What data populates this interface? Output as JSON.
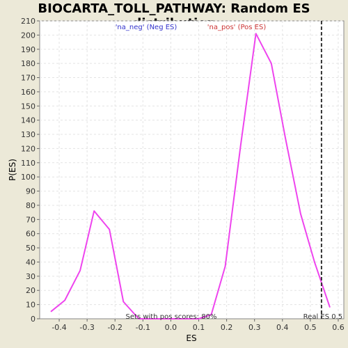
{
  "chart_data": {
    "type": "line",
    "title": "BIOCARTA_TOLL_PATHWAY: Random ES distribution",
    "xlabel": "ES",
    "ylabel": "P(ES)",
    "xlim": [
      -0.47,
      0.62
    ],
    "ylim": [
      0,
      210
    ],
    "x_ticks": [
      -0.4,
      -0.3,
      -0.2,
      -0.1,
      0.0,
      0.1,
      0.2,
      0.3,
      0.4,
      0.5,
      0.6
    ],
    "x_tick_labels": [
      "-0.4",
      "-0.3",
      "-0.2",
      "-0.1",
      "0.0",
      "0.1",
      "0.2",
      "0.3",
      "0.4",
      "0.5",
      "0.6"
    ],
    "y_ticks": [
      0,
      10,
      20,
      30,
      40,
      50,
      60,
      70,
      80,
      90,
      100,
      110,
      120,
      130,
      140,
      150,
      160,
      170,
      180,
      190,
      200,
      210
    ],
    "grid": true,
    "legend": [
      {
        "label": "'na_neg' (Neg ES)",
        "color": "#3333cc"
      },
      {
        "label": "'na_pos' (Pos ES)",
        "color": "#cc3333"
      }
    ],
    "series": [
      {
        "color": "#ee44ee",
        "x": [
          -0.43,
          -0.38,
          -0.325,
          -0.275,
          -0.22,
          -0.17,
          -0.115,
          -0.06,
          0.0,
          0.05,
          0.1,
          0.145,
          0.195,
          0.25,
          0.305,
          0.36,
          0.41,
          0.465,
          0.515,
          0.57
        ],
        "y": [
          5,
          13,
          34,
          76,
          63,
          12,
          0,
          0,
          0,
          0,
          0,
          3,
          37,
          122,
          201,
          180,
          128,
          74,
          40,
          8
        ]
      }
    ],
    "real_es": {
      "x": 0.54,
      "label": "Real ES 0.5",
      "color": "#333333"
    },
    "annotation": "Sets with pos scores: 80%"
  }
}
